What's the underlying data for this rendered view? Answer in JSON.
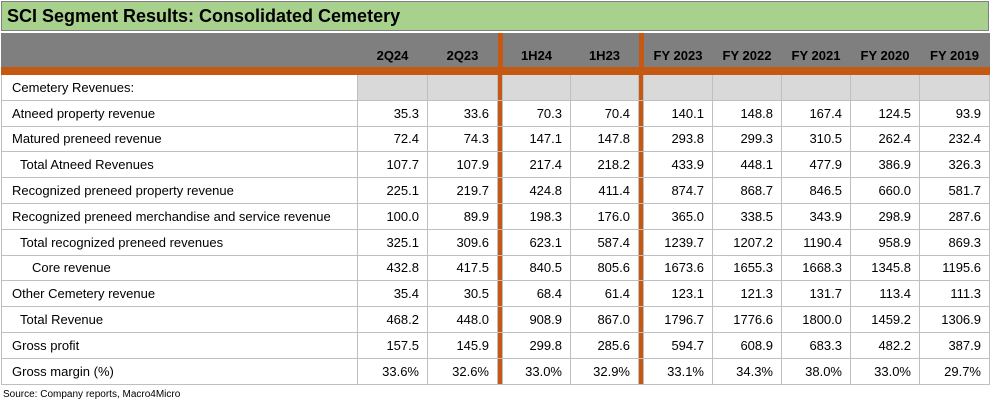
{
  "title": "SCI Segment Results: Consolidated Cemetery",
  "columns": [
    "2Q24",
    "2Q23",
    "1H24",
    "1H23",
    "FY 2023",
    "FY 2022",
    "FY 2021",
    "FY 2020",
    "FY 2019"
  ],
  "section_label": "Cemetery Revenues:",
  "rows": [
    {
      "label": "Atneed property revenue",
      "values": [
        "35.3",
        "33.6",
        "70.3",
        "70.4",
        "140.1",
        "148.8",
        "167.4",
        "124.5",
        "93.9"
      ]
    },
    {
      "label": "Matured preneed revenue",
      "values": [
        "72.4",
        "74.3",
        "147.1",
        "147.8",
        "293.8",
        "299.3",
        "310.5",
        "262.4",
        "232.4"
      ]
    },
    {
      "label": "Total Atneed Revenues",
      "values": [
        "107.7",
        "107.9",
        "217.4",
        "218.2",
        "433.9",
        "448.1",
        "477.9",
        "386.9",
        "326.3"
      ]
    },
    {
      "label": "Recognized preneed property revenue",
      "values": [
        "225.1",
        "219.7",
        "424.8",
        "411.4",
        "874.7",
        "868.7",
        "846.5",
        "660.0",
        "581.7"
      ]
    },
    {
      "label": "Recognized preneed merchandise and service revenue",
      "values": [
        "100.0",
        "89.9",
        "198.3",
        "176.0",
        "365.0",
        "338.5",
        "343.9",
        "298.9",
        "287.6"
      ]
    },
    {
      "label": "Total recognized preneed revenues",
      "values": [
        "325.1",
        "309.6",
        "623.1",
        "587.4",
        "1239.7",
        "1207.2",
        "1190.4",
        "958.9",
        "869.3"
      ]
    },
    {
      "label": "Core revenue",
      "values": [
        "432.8",
        "417.5",
        "840.5",
        "805.6",
        "1673.6",
        "1655.3",
        "1668.3",
        "1345.8",
        "1195.6"
      ]
    },
    {
      "label": "Other Cemetery revenue",
      "values": [
        "35.4",
        "30.5",
        "68.4",
        "61.4",
        "123.1",
        "121.3",
        "131.7",
        "113.4",
        "111.3"
      ]
    },
    {
      "label": "Total Revenue",
      "values": [
        "468.2",
        "448.0",
        "908.9",
        "867.0",
        "1796.7",
        "1776.6",
        "1800.0",
        "1459.2",
        "1306.9"
      ]
    },
    {
      "label": "Gross profit",
      "values": [
        "157.5",
        "145.9",
        "299.8",
        "285.6",
        "594.7",
        "608.9",
        "683.3",
        "482.2",
        "387.9"
      ]
    },
    {
      "label": "Gross margin (%)",
      "values": [
        "33.6%",
        "32.6%",
        "33.0%",
        "32.9%",
        "33.1%",
        "34.3%",
        "38.0%",
        "33.0%",
        "29.7%"
      ]
    }
  ],
  "source": "Source: Company reports, Macro4Micro",
  "colors": {
    "title_bg": "#a9d18e",
    "header_bg": "#7f7f7f",
    "separator": "#c65911",
    "shade": "#d9d9d9"
  }
}
